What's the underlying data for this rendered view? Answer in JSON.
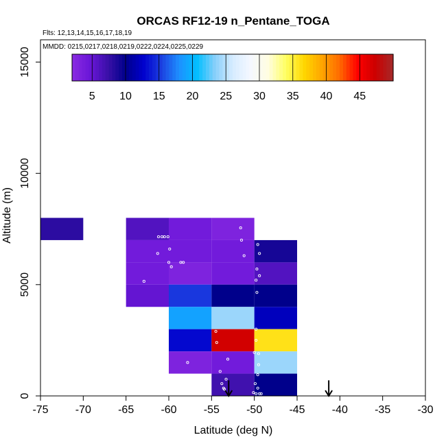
{
  "chart_data": {
    "type": "heatmap",
    "title": "ORCAS RF12-19 n_Pentane_TOGA",
    "flights_note": "Flts: 12,13,14,15,16,17,18,19",
    "dates_note": "MMDD: 0215,0217,0218,0219,0222,0224,0225,0229",
    "xlabel": "Latitude (deg N)",
    "ylabel": "Altitude (m)",
    "xlim": [
      -75,
      -30
    ],
    "ylim": [
      0,
      16000
    ],
    "xticks": [
      -75,
      -70,
      -65,
      -60,
      -55,
      -50,
      -45,
      -40,
      -35,
      -30
    ],
    "yticks": [
      0,
      5000,
      10000,
      15000
    ],
    "colorbar": {
      "range": [
        2,
        50
      ],
      "tick_values": [
        5,
        10,
        15,
        20,
        25,
        30,
        35,
        40,
        45
      ],
      "colors": [
        "#8a2be2",
        "#6a16d8",
        "#3a10a8",
        "#00008b",
        "#0000cd",
        "#1c3fe0",
        "#1e90ff",
        "#00bfff",
        "#87cefa",
        "#d6ecff",
        "#f5f8ff",
        "#fffde0",
        "#ffff60",
        "#ffd700",
        "#ffa500",
        "#ff6a00",
        "#ff0000",
        "#cc0000",
        "#a52a2a"
      ]
    },
    "cells": [
      {
        "lat0": -75,
        "lat1": -70,
        "alt0": 7000,
        "alt1": 8000,
        "value": 8
      },
      {
        "lat0": -65,
        "lat1": -60,
        "alt0": 7000,
        "alt1": 8000,
        "value": 6
      },
      {
        "lat0": -60,
        "lat1": -55,
        "alt0": 7000,
        "alt1": 8000,
        "value": 4
      },
      {
        "lat0": -55,
        "lat1": -50,
        "alt0": 7000,
        "alt1": 8000,
        "value": 3
      },
      {
        "lat0": -65,
        "lat1": -60,
        "alt0": 6000,
        "alt1": 7000,
        "value": 4
      },
      {
        "lat0": -60,
        "lat1": -55,
        "alt0": 6000,
        "alt1": 7000,
        "value": 4
      },
      {
        "lat0": -55,
        "lat1": -50,
        "alt0": 6000,
        "alt1": 7000,
        "value": 4
      },
      {
        "lat0": -50,
        "lat1": -45,
        "alt0": 6000,
        "alt1": 7000,
        "value": 9
      },
      {
        "lat0": -65,
        "lat1": -60,
        "alt0": 5000,
        "alt1": 6000,
        "value": 4
      },
      {
        "lat0": -60,
        "lat1": -55,
        "alt0": 5000,
        "alt1": 6000,
        "value": 3
      },
      {
        "lat0": -55,
        "lat1": -50,
        "alt0": 5000,
        "alt1": 6000,
        "value": 4
      },
      {
        "lat0": -50,
        "lat1": -45,
        "alt0": 5000,
        "alt1": 6000,
        "value": 6
      },
      {
        "lat0": -65,
        "lat1": -60,
        "alt0": 4000,
        "alt1": 5000,
        "value": 5
      },
      {
        "lat0": -60,
        "lat1": -55,
        "alt0": 4000,
        "alt1": 5000,
        "value": 15
      },
      {
        "lat0": -55,
        "lat1": -50,
        "alt0": 4000,
        "alt1": 5000,
        "value": 10
      },
      {
        "lat0": -50,
        "lat1": -45,
        "alt0": 4000,
        "alt1": 5000,
        "value": 10
      },
      {
        "lat0": -60,
        "lat1": -55,
        "alt0": 3000,
        "alt1": 4000,
        "value": 19
      },
      {
        "lat0": -55,
        "lat1": -50,
        "alt0": 3000,
        "alt1": 4000,
        "value": 24
      },
      {
        "lat0": -50,
        "lat1": -45,
        "alt0": 3000,
        "alt1": 4000,
        "value": 12
      },
      {
        "lat0": -60,
        "lat1": -55,
        "alt0": 2000,
        "alt1": 3000,
        "value": 13
      },
      {
        "lat0": -55,
        "lat1": -50,
        "alt0": 2000,
        "alt1": 3000,
        "value": 47
      },
      {
        "lat0": -50,
        "lat1": -45,
        "alt0": 2000,
        "alt1": 3000,
        "value": 36
      },
      {
        "lat0": -60,
        "lat1": -55,
        "alt0": 1000,
        "alt1": 2000,
        "value": 3
      },
      {
        "lat0": -55,
        "lat1": -50,
        "alt0": 1000,
        "alt1": 2000,
        "value": 4
      },
      {
        "lat0": -50,
        "lat1": -45,
        "alt0": 1000,
        "alt1": 2000,
        "value": 24
      },
      {
        "lat0": -55,
        "lat1": -50,
        "alt0": 0,
        "alt1": 1000,
        "value": 7
      },
      {
        "lat0": -50,
        "lat1": -45,
        "alt0": 0,
        "alt1": 1000,
        "value": 10
      }
    ],
    "sample_points": [
      {
        "lat": -66.1,
        "alt": 7250
      },
      {
        "lat": -61.2,
        "alt": 7150
      },
      {
        "lat": -60.8,
        "alt": 7150
      },
      {
        "lat": -60.5,
        "alt": 7150
      },
      {
        "lat": -60.1,
        "alt": 7150
      },
      {
        "lat": -59.9,
        "alt": 6600
      },
      {
        "lat": -61.3,
        "alt": 6400
      },
      {
        "lat": -60.0,
        "alt": 6000
      },
      {
        "lat": -59.7,
        "alt": 5800
      },
      {
        "lat": -58.6,
        "alt": 6000
      },
      {
        "lat": -58.3,
        "alt": 6000
      },
      {
        "lat": -62.9,
        "alt": 5150
      },
      {
        "lat": -51.6,
        "alt": 7550
      },
      {
        "lat": -51.5,
        "alt": 7000
      },
      {
        "lat": -51.2,
        "alt": 6300
      },
      {
        "lat": -49.6,
        "alt": 6800
      },
      {
        "lat": -49.4,
        "alt": 6400
      },
      {
        "lat": -49.7,
        "alt": 5700
      },
      {
        "lat": -49.4,
        "alt": 5400
      },
      {
        "lat": -49.8,
        "alt": 5200
      },
      {
        "lat": -49.7,
        "alt": 4650
      },
      {
        "lat": -54.5,
        "alt": 2900
      },
      {
        "lat": -54.4,
        "alt": 2400
      },
      {
        "lat": -49.8,
        "alt": 3000
      },
      {
        "lat": -49.8,
        "alt": 2500
      },
      {
        "lat": -50.0,
        "alt": 1950
      },
      {
        "lat": -49.5,
        "alt": 1900
      },
      {
        "lat": -57.8,
        "alt": 1500
      },
      {
        "lat": -53.1,
        "alt": 1650
      },
      {
        "lat": -54.0,
        "alt": 1100
      },
      {
        "lat": -49.5,
        "alt": 1400
      },
      {
        "lat": -49.6,
        "alt": 950
      },
      {
        "lat": -53.3,
        "alt": 750
      },
      {
        "lat": -53.8,
        "alt": 550
      },
      {
        "lat": -53.6,
        "alt": 350
      },
      {
        "lat": -53.5,
        "alt": 300
      },
      {
        "lat": -49.9,
        "alt": 550
      },
      {
        "lat": -49.6,
        "alt": 350
      },
      {
        "lat": -50.1,
        "alt": 150
      },
      {
        "lat": -49.8,
        "alt": 100
      },
      {
        "lat": -49.4,
        "alt": 100
      },
      {
        "lat": -49.2,
        "alt": 100
      }
    ],
    "arrows": [
      {
        "lat": -53.0,
        "alt0": 700,
        "alt1": 0
      },
      {
        "lat": -41.3,
        "alt0": 700,
        "alt1": 0
      }
    ]
  }
}
